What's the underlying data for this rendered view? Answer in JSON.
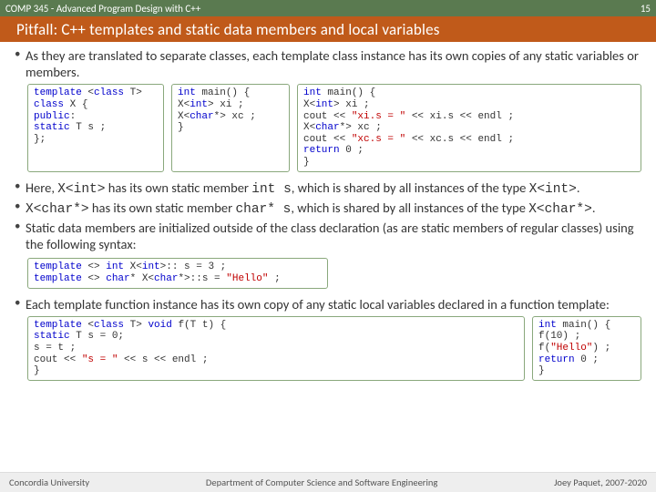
{
  "header": {
    "course": "COMP 345 - Advanced Program Design with C++",
    "page": "15",
    "title": "Pitfall: C++ templates and static data members and local variables"
  },
  "bullets": {
    "b1": "As they are translated to separate classes, each template class instance has its own copies of any static variables or members.",
    "b2_pre": "Here, ",
    "b2_code1": "X<int>",
    "b2_mid": " has its own static member ",
    "b2_code2": "int s",
    "b2_post": ", which is shared by all instances of the type ",
    "b2_code3": "X<int>",
    "b2_end": ".",
    "b3_code1": "X<char*>",
    "b3_mid": " has its own static member ",
    "b3_code2": "char* s",
    "b3_post": ", which is shared by all instances of the type ",
    "b3_code3": "X<char*>",
    "b3_end": ".",
    "b4": "Static data members are initialized outside of the class declaration (as are static members of regular classes) using the following syntax:",
    "b5": "Each template function instance has its own copy of any static local variables declared in a function template:"
  },
  "code": {
    "c1": {
      "l1a": "template",
      "l1b": " <",
      "l1c": "class",
      "l1d": " T>",
      "l2a": "class",
      "l2b": " X {",
      "l3a": "  public",
      "l3b": ":",
      "l4a": "    static",
      "l4b": " T s ;",
      "l5": "};"
    },
    "c2": {
      "l1a": "int",
      "l1b": " main() {",
      "l2": "  X<int> xi ;",
      "l2a": "  X<",
      "l2b": "int",
      "l2c": "> xi ;",
      "l3a": "  X<",
      "l3b": "char",
      "l3c": "*> xc ;",
      "l4": "}"
    },
    "c3": {
      "l1a": "int",
      "l1b": " main() {",
      "l2a": "  X<",
      "l2b": "int",
      "l2c": "> xi ;",
      "l3a": "  cout << ",
      "l3b": "\"xi.s = \"",
      "l3c": " << xi.s << endl ;",
      "l4a": "  X<",
      "l4b": "char",
      "l4c": "*> xc ;",
      "l5a": "  cout << ",
      "l5b": "\"xc.s = \"",
      "l5c": " << xc.s << endl ;",
      "l6a": "  return",
      "l6b": " 0 ;",
      "l7": "}"
    },
    "c4": {
      "l1a": "template",
      "l1b": " <> ",
      "l1c": "int",
      "l1d": " X<",
      "l1e": "int",
      "l1f": ">:: s = 3 ;",
      "l2a": "template",
      "l2b": " <> ",
      "l2c": "char",
      "l2d": "* X<",
      "l2e": "char",
      "l2f": "*>::s = ",
      "l2g": "\"Hello\"",
      "l2h": " ;"
    },
    "c5": {
      "l1a": "template",
      "l1b": " <",
      "l1c": "class",
      "l1d": " T> ",
      "l1e": "void",
      "l1f": " f(T t) {",
      "l2a": "  static",
      "l2b": " T s  = 0;",
      "l3": "  s = t ;",
      "l4a": "  cout << ",
      "l4b": "\"s = \"",
      "l4c": " << s << endl ;",
      "l5": "}"
    },
    "c6": {
      "l1a": "int",
      "l1b": " main() {",
      "l2": "  f(10) ;",
      "l3a": "  f(",
      "l3b": "\"Hello\"",
      "l3c": ") ;",
      "l4a": "  return",
      "l4b": " 0 ;",
      "l5": "}"
    }
  },
  "footer": {
    "left": "Concordia University",
    "center": "Department of Computer Science and Software Engineering",
    "right": "Joey Paquet, 2007-2020"
  },
  "colors": {
    "header_bg": "#5a7a50",
    "title_bg": "#c05a1a",
    "border": "#8aa87c",
    "keyword": "#0000cc",
    "string": "#c00000"
  }
}
